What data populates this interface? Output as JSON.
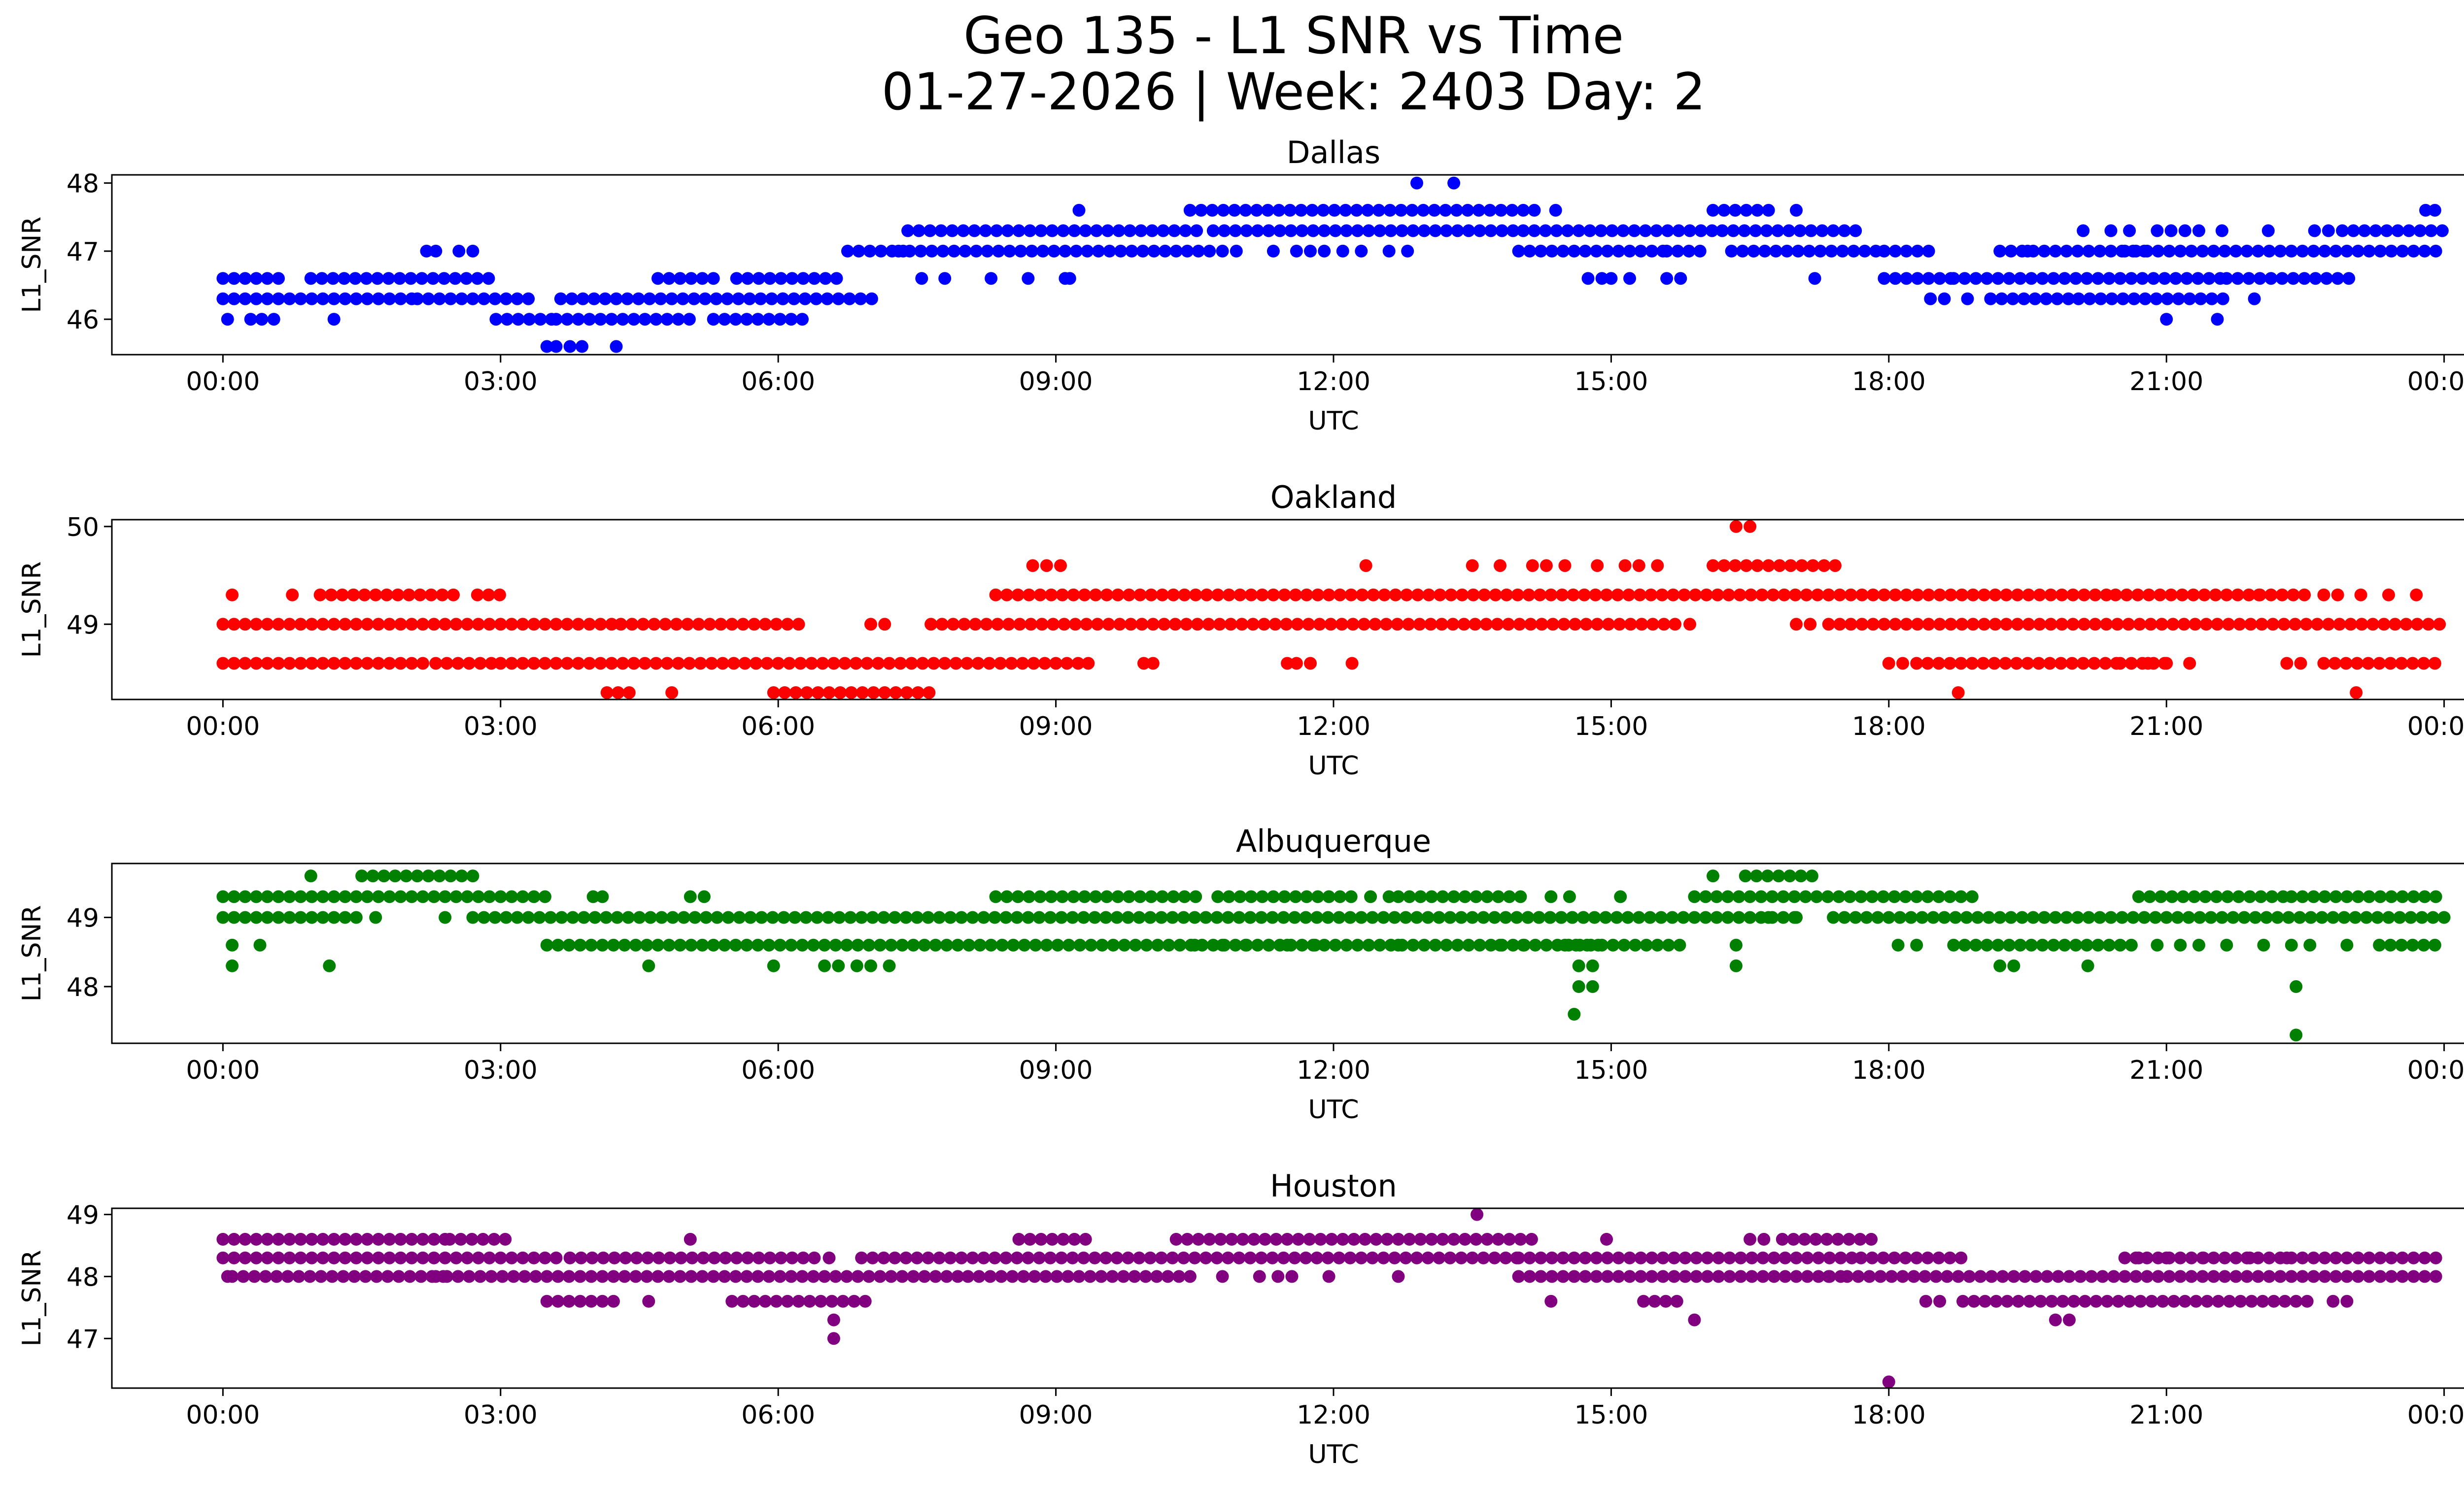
{
  "figure": {
    "title_line1": "Geo 135 - L1 SNR vs Time",
    "title_line2": "01-27-2026 | Week: 2403 Day: 2"
  },
  "chart_data": [
    {
      "type": "scatter",
      "title": "Dallas",
      "xlabel": "UTC",
      "ylabel": "L1_SNR",
      "color": "#0000ff",
      "xticks": [
        "00:00",
        "03:00",
        "06:00",
        "09:00",
        "12:00",
        "15:00",
        "18:00",
        "21:00",
        "00:00"
      ],
      "xlim_hours": [
        -1.2,
        25.2
      ],
      "yticks": [
        46,
        47,
        48
      ],
      "ylim": [
        45.48,
        48.12
      ],
      "runs": [
        [
          0.0,
          0.65,
          46.6
        ],
        [
          0.95,
          2.95,
          46.6
        ],
        [
          0.0,
          2.1,
          46.3
        ],
        [
          2.1,
          3.3,
          46.3
        ],
        [
          2.95,
          3.65,
          46.0
        ],
        [
          3.65,
          6.05,
          46.3
        ],
        [
          4.7,
          5.3,
          46.6
        ],
        [
          5.55,
          6.7,
          46.6
        ],
        [
          3.6,
          5.1,
          46.0
        ],
        [
          5.3,
          6.3,
          46.0
        ],
        [
          6.05,
          7.05,
          46.3
        ],
        [
          6.75,
          7.4,
          47.0
        ],
        [
          7.4,
          10.55,
          47.3
        ],
        [
          7.3,
          10.7,
          47.0
        ],
        [
          10.45,
          14.2,
          47.6
        ],
        [
          10.7,
          11.3,
          47.3
        ],
        [
          11.3,
          14.05,
          47.3
        ],
        [
          14.0,
          15.6,
          47.0
        ],
        [
          14.05,
          16.2,
          47.3
        ],
        [
          15.6,
          16.05,
          47.0
        ],
        [
          16.1,
          16.75,
          47.6
        ],
        [
          16.2,
          17.75,
          47.3
        ],
        [
          16.3,
          17.95,
          47.0
        ],
        [
          17.95,
          18.45,
          47.0
        ],
        [
          17.95,
          18.7,
          46.6
        ],
        [
          18.7,
          21.65,
          46.6
        ],
        [
          19.1,
          20.05,
          46.3
        ],
        [
          20.05,
          21.65,
          46.3
        ],
        [
          19.2,
          20.8,
          47.0
        ],
        [
          20.55,
          24.0,
          47.0
        ],
        [
          21.65,
          23.05,
          46.6
        ],
        [
          22.9,
          24.0,
          47.3
        ]
      ],
      "points": [
        [
          0.05,
          46.0
        ],
        [
          0.3,
          46.0
        ],
        [
          0.42,
          46.0
        ],
        [
          0.55,
          46.0
        ],
        [
          1.2,
          46.0
        ],
        [
          2.2,
          47.0
        ],
        [
          2.3,
          47.0
        ],
        [
          2.55,
          47.0
        ],
        [
          2.7,
          47.0
        ],
        [
          3.5,
          45.6
        ],
        [
          3.6,
          45.6
        ],
        [
          3.75,
          45.6
        ],
        [
          3.88,
          45.6
        ],
        [
          4.25,
          45.6
        ],
        [
          7.55,
          46.6
        ],
        [
          7.8,
          46.6
        ],
        [
          8.3,
          46.6
        ],
        [
          8.7,
          46.6
        ],
        [
          9.1,
          46.6
        ],
        [
          9.15,
          46.6
        ],
        [
          9.25,
          47.6
        ],
        [
          12.9,
          48.0
        ],
        [
          13.3,
          48.0
        ],
        [
          14.4,
          47.6
        ],
        [
          10.8,
          47.0
        ],
        [
          10.95,
          47.0
        ],
        [
          11.35,
          47.0
        ],
        [
          11.6,
          47.0
        ],
        [
          11.75,
          47.0
        ],
        [
          11.9,
          47.0
        ],
        [
          12.1,
          47.0
        ],
        [
          12.3,
          47.0
        ],
        [
          12.6,
          47.0
        ],
        [
          12.8,
          47.0
        ],
        [
          14.75,
          46.6
        ],
        [
          14.9,
          46.6
        ],
        [
          15.0,
          46.6
        ],
        [
          15.2,
          46.6
        ],
        [
          15.6,
          46.6
        ],
        [
          15.75,
          46.6
        ],
        [
          17.0,
          47.6
        ],
        [
          17.2,
          46.6
        ],
        [
          18.45,
          46.3
        ],
        [
          18.6,
          46.3
        ],
        [
          18.85,
          46.3
        ],
        [
          19.5,
          47.0
        ],
        [
          20.1,
          47.3
        ],
        [
          20.4,
          47.3
        ],
        [
          20.6,
          47.3
        ],
        [
          20.9,
          47.3
        ],
        [
          21.05,
          47.3
        ],
        [
          21.2,
          47.3
        ],
        [
          21.35,
          47.3
        ],
        [
          21.6,
          47.3
        ],
        [
          22.1,
          47.3
        ],
        [
          22.6,
          47.3
        ],
        [
          22.75,
          47.3
        ],
        [
          21.0,
          46.0
        ],
        [
          21.55,
          46.0
        ],
        [
          21.95,
          46.3
        ],
        [
          23.8,
          47.6
        ],
        [
          23.9,
          47.6
        ]
      ]
    },
    {
      "type": "scatter",
      "title": "Oakland",
      "xlabel": "UTC",
      "ylabel": "L1_SNR",
      "color": "#ff0000",
      "xticks": [
        "00:00",
        "03:00",
        "06:00",
        "09:00",
        "12:00",
        "15:00",
        "18:00",
        "21:00",
        "00:00"
      ],
      "xlim_hours": [
        -1.2,
        25.2
      ],
      "yticks": [
        49,
        50
      ],
      "ylim": [
        48.23,
        50.07
      ],
      "runs": [
        [
          0.0,
          4.2,
          49.0
        ],
        [
          4.3,
          6.25,
          49.0
        ],
        [
          0.0,
          2.2,
          48.6
        ],
        [
          2.3,
          2.95,
          48.6
        ],
        [
          3.0,
          9.35,
          48.6
        ],
        [
          1.05,
          2.55,
          49.3
        ],
        [
          2.75,
          3.05,
          49.3
        ],
        [
          5.95,
          7.65,
          48.3
        ],
        [
          4.15,
          4.5,
          48.3
        ],
        [
          7.65,
          15.7,
          49.0
        ],
        [
          8.35,
          17.35,
          49.3
        ],
        [
          16.1,
          17.5,
          49.6
        ],
        [
          17.35,
          24.0,
          49.0
        ],
        [
          17.35,
          20.4,
          49.3
        ],
        [
          20.45,
          22.5,
          49.3
        ],
        [
          18.3,
          20.5,
          48.6
        ],
        [
          20.5,
          21.05,
          48.6
        ],
        [
          22.7,
          24.0,
          48.6
        ]
      ],
      "points": [
        [
          0.1,
          49.3
        ],
        [
          0.75,
          49.3
        ],
        [
          4.85,
          48.3
        ],
        [
          7.0,
          49.0
        ],
        [
          7.15,
          49.0
        ],
        [
          8.75,
          49.6
        ],
        [
          8.9,
          49.6
        ],
        [
          9.05,
          49.6
        ],
        [
          9.35,
          48.6
        ],
        [
          9.95,
          48.6
        ],
        [
          10.05,
          48.6
        ],
        [
          11.5,
          48.6
        ],
        [
          11.6,
          48.6
        ],
        [
          11.75,
          48.6
        ],
        [
          12.2,
          48.6
        ],
        [
          12.35,
          49.6
        ],
        [
          13.5,
          49.6
        ],
        [
          13.8,
          49.6
        ],
        [
          14.15,
          49.6
        ],
        [
          14.3,
          49.6
        ],
        [
          14.5,
          49.6
        ],
        [
          14.85,
          49.6
        ],
        [
          15.15,
          49.6
        ],
        [
          15.3,
          49.6
        ],
        [
          15.5,
          49.6
        ],
        [
          15.85,
          49.0
        ],
        [
          16.35,
          50.0
        ],
        [
          16.5,
          50.0
        ],
        [
          17.0,
          49.0
        ],
        [
          17.15,
          49.0
        ],
        [
          18.0,
          48.6
        ],
        [
          18.15,
          48.6
        ],
        [
          18.75,
          48.3
        ],
        [
          20.8,
          48.6
        ],
        [
          21.0,
          48.6
        ],
        [
          21.25,
          48.6
        ],
        [
          22.0,
          49.3
        ],
        [
          22.3,
          48.6
        ],
        [
          22.45,
          48.6
        ],
        [
          22.7,
          49.3
        ],
        [
          22.85,
          49.3
        ],
        [
          23.1,
          49.3
        ],
        [
          23.4,
          49.3
        ],
        [
          23.7,
          49.3
        ],
        [
          23.05,
          48.3
        ]
      ]
    },
    {
      "type": "scatter",
      "title": "Albuquerque",
      "xlabel": "UTC",
      "ylabel": "L1_SNR",
      "color": "#008000",
      "xticks": [
        "00:00",
        "03:00",
        "06:00",
        "09:00",
        "12:00",
        "15:00",
        "18:00",
        "21:00",
        "00:00"
      ],
      "xlim_hours": [
        -1.2,
        25.2
      ],
      "yticks": [
        48,
        49
      ],
      "ylim": [
        47.18,
        49.78
      ],
      "runs": [
        [
          0.0,
          3.55,
          49.3
        ],
        [
          0.0,
          1.55,
          49.0
        ],
        [
          1.5,
          2.7,
          49.6
        ],
        [
          2.7,
          14.75,
          49.0
        ],
        [
          3.5,
          15.75,
          48.6
        ],
        [
          8.35,
          10.55,
          49.3
        ],
        [
          10.75,
          12.3,
          49.3
        ],
        [
          12.7,
          14.1,
          49.3
        ],
        [
          14.1,
          17.0,
          49.0
        ],
        [
          14.5,
          14.95,
          48.6
        ],
        [
          15.9,
          18.95,
          49.3
        ],
        [
          16.45,
          17.25,
          49.6
        ],
        [
          17.4,
          24.0,
          49.0
        ],
        [
          18.7,
          20.7,
          48.6
        ],
        [
          20.7,
          22.3,
          49.3
        ],
        [
          22.35,
          24.0,
          49.3
        ],
        [
          23.3,
          24.0,
          48.6
        ]
      ],
      "points": [
        [
          0.1,
          48.6
        ],
        [
          0.4,
          48.6
        ],
        [
          0.1,
          48.3
        ],
        [
          0.95,
          49.6
        ],
        [
          1.15,
          48.3
        ],
        [
          1.65,
          49.0
        ],
        [
          2.4,
          49.0
        ],
        [
          4.0,
          49.3
        ],
        [
          4.1,
          49.3
        ],
        [
          4.6,
          48.3
        ],
        [
          5.05,
          49.3
        ],
        [
          5.2,
          49.3
        ],
        [
          5.95,
          48.3
        ],
        [
          6.5,
          48.3
        ],
        [
          6.65,
          48.3
        ],
        [
          6.85,
          48.3
        ],
        [
          7.0,
          48.3
        ],
        [
          7.2,
          48.3
        ],
        [
          10.5,
          48.6
        ],
        [
          10.8,
          48.6
        ],
        [
          11.05,
          48.6
        ],
        [
          11.3,
          48.6
        ],
        [
          11.5,
          48.6
        ],
        [
          11.8,
          48.6
        ],
        [
          12.7,
          48.6
        ],
        [
          12.4,
          49.3
        ],
        [
          12.6,
          49.3
        ],
        [
          13.8,
          48.6
        ],
        [
          14.05,
          48.6
        ],
        [
          14.35,
          49.3
        ],
        [
          14.55,
          49.3
        ],
        [
          14.65,
          48.3
        ],
        [
          14.8,
          48.3
        ],
        [
          14.65,
          48.0
        ],
        [
          14.8,
          48.0
        ],
        [
          14.6,
          47.6
        ],
        [
          15.1,
          49.3
        ],
        [
          16.1,
          49.6
        ],
        [
          16.35,
          48.6
        ],
        [
          16.35,
          48.3
        ],
        [
          16.7,
          49.0
        ],
        [
          17.0,
          49.0
        ],
        [
          18.1,
          48.6
        ],
        [
          18.3,
          48.6
        ],
        [
          19.2,
          48.3
        ],
        [
          19.35,
          48.3
        ],
        [
          20.15,
          48.3
        ],
        [
          20.9,
          48.6
        ],
        [
          21.15,
          48.6
        ],
        [
          21.35,
          48.6
        ],
        [
          21.65,
          48.6
        ],
        [
          22.05,
          48.6
        ],
        [
          22.35,
          48.6
        ],
        [
          22.55,
          48.6
        ],
        [
          22.95,
          48.6
        ],
        [
          22.4,
          48.0
        ],
        [
          22.4,
          47.3
        ]
      ]
    },
    {
      "type": "scatter",
      "title": "Houston",
      "xlabel": "UTC",
      "ylabel": "L1_SNR",
      "color": "#800080",
      "xticks": [
        "00:00",
        "03:00",
        "06:00",
        "09:00",
        "12:00",
        "15:00",
        "18:00",
        "21:00",
        "00:00"
      ],
      "xlim_hours": [
        -1.2,
        25.2
      ],
      "yticks": [
        47,
        48,
        49
      ],
      "ylim": [
        46.2,
        49.1
      ],
      "runs": [
        [
          0.0,
          3.6,
          48.3
        ],
        [
          3.75,
          6.5,
          48.3
        ],
        [
          6.9,
          14.05,
          48.3
        ],
        [
          14.0,
          17.65,
          48.3
        ],
        [
          17.7,
          18.8,
          48.3
        ],
        [
          20.55,
          24.0,
          48.3
        ],
        [
          0.0,
          2.45,
          48.6
        ],
        [
          2.45,
          3.05,
          48.6
        ],
        [
          0.1,
          2.45,
          48.0
        ],
        [
          2.3,
          8.05,
          48.0
        ],
        [
          8.05,
          10.55,
          48.0
        ],
        [
          14.0,
          17.5,
          48.0
        ],
        [
          17.55,
          24.0,
          48.0
        ],
        [
          3.5,
          4.3,
          47.6
        ],
        [
          5.5,
          7.0,
          47.6
        ],
        [
          18.8,
          22.6,
          47.6
        ],
        [
          10.3,
          14.15,
          48.6
        ],
        [
          16.85,
          17.85,
          48.6
        ],
        [
          8.6,
          9.35,
          48.6
        ],
        [
          15.35,
          15.8,
          47.6
        ]
      ],
      "points": [
        [
          0.05,
          48.0
        ],
        [
          5.05,
          48.6
        ],
        [
          4.6,
          47.6
        ],
        [
          6.55,
          48.3
        ],
        [
          6.6,
          47.3
        ],
        [
          6.6,
          47.0
        ],
        [
          10.8,
          48.0
        ],
        [
          11.2,
          48.0
        ],
        [
          11.4,
          48.0
        ],
        [
          11.55,
          48.0
        ],
        [
          11.95,
          48.0
        ],
        [
          12.7,
          48.0
        ],
        [
          13.55,
          49.0
        ],
        [
          14.35,
          47.6
        ],
        [
          14.95,
          48.6
        ],
        [
          15.9,
          47.3
        ],
        [
          16.5,
          48.6
        ],
        [
          16.65,
          48.6
        ],
        [
          17.35,
          48.0
        ],
        [
          18.0,
          46.3
        ],
        [
          18.4,
          47.6
        ],
        [
          18.55,
          47.6
        ],
        [
          19.8,
          47.3
        ],
        [
          19.95,
          47.3
        ],
        [
          20.7,
          48.3
        ],
        [
          21.0,
          48.3
        ],
        [
          21.4,
          48.3
        ],
        [
          21.9,
          48.3
        ],
        [
          22.3,
          48.3
        ],
        [
          22.8,
          47.6
        ],
        [
          22.95,
          47.6
        ]
      ]
    }
  ]
}
